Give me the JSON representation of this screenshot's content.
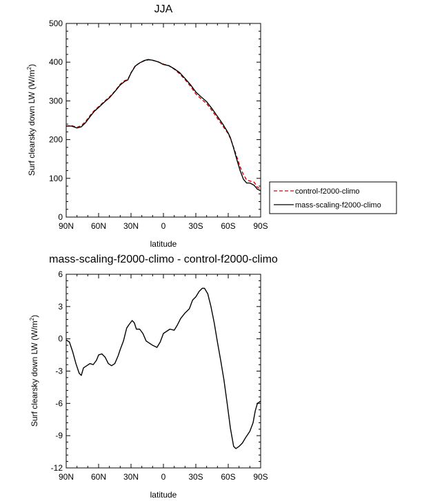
{
  "chart_data": [
    {
      "type": "line",
      "title": "JJA",
      "xlabel": "latitude",
      "ylabel_main": "Surf clearsky down LW (W/m",
      "ylabel_sup": "2",
      "ylabel_close": ")",
      "xlim": [
        90,
        -90
      ],
      "ylim": [
        0,
        500
      ],
      "grid": false,
      "legend_position": "right",
      "x_ticks": [
        {
          "value": 90,
          "label": "90N"
        },
        {
          "value": 60,
          "label": "60N"
        },
        {
          "value": 30,
          "label": "30N"
        },
        {
          "value": 0,
          "label": "0"
        },
        {
          "value": -30,
          "label": "30S"
        },
        {
          "value": -60,
          "label": "60S"
        },
        {
          "value": -90,
          "label": "90S"
        }
      ],
      "y_ticks": [
        {
          "value": 0,
          "label": "0"
        },
        {
          "value": 100,
          "label": "100"
        },
        {
          "value": 200,
          "label": "200"
        },
        {
          "value": 300,
          "label": "300"
        },
        {
          "value": 400,
          "label": "400"
        },
        {
          "value": 500,
          "label": "500"
        }
      ],
      "series": [
        {
          "name": "control-f2000-climo",
          "color": "#cc0000",
          "dash": "dashed",
          "points": [
            [
              90,
              235
            ],
            [
              85,
              236
            ],
            [
              80,
              232
            ],
            [
              76,
              236
            ],
            [
              72,
              247
            ],
            [
              68,
              262
            ],
            [
              64,
              275
            ],
            [
              60,
              285
            ],
            [
              55,
              298
            ],
            [
              50,
              310
            ],
            [
              45,
              325
            ],
            [
              40,
              343
            ],
            [
              36,
              352
            ],
            [
              33,
              355
            ],
            [
              30,
              373
            ],
            [
              26,
              391
            ],
            [
              22,
              398
            ],
            [
              18,
              403
            ],
            [
              14,
              406
            ],
            [
              10,
              405
            ],
            [
              5,
              401
            ],
            [
              0,
              395
            ],
            [
              -5,
              391
            ],
            [
              -10,
              382
            ],
            [
              -15,
              370
            ],
            [
              -20,
              355
            ],
            [
              -25,
              338
            ],
            [
              -30,
              318
            ],
            [
              -35,
              305
            ],
            [
              -40,
              293
            ],
            [
              -45,
              275
            ],
            [
              -50,
              255
            ],
            [
              -55,
              235
            ],
            [
              -60,
              215
            ],
            [
              -62,
              203
            ],
            [
              -65,
              180
            ],
            [
              -68,
              155
            ],
            [
              -71,
              130
            ],
            [
              -74,
              110
            ],
            [
              -77,
              96
            ],
            [
              -80,
              93
            ],
            [
              -84,
              90
            ],
            [
              -87,
              77
            ],
            [
              -90,
              73
            ]
          ]
        },
        {
          "name": "mass-scaling-f2000-climo",
          "color": "#000000",
          "dash": "solid",
          "points": [
            [
              90,
              235
            ],
            [
              85,
              235
            ],
            [
              80,
              230
            ],
            [
              76,
              233
            ],
            [
              72,
              244
            ],
            [
              68,
              259
            ],
            [
              64,
              273
            ],
            [
              60,
              283
            ],
            [
              55,
              296
            ],
            [
              50,
              308
            ],
            [
              45,
              324
            ],
            [
              40,
              341
            ],
            [
              36,
              350
            ],
            [
              33,
              354
            ],
            [
              30,
              372
            ],
            [
              26,
              390
            ],
            [
              22,
              398
            ],
            [
              18,
              404
            ],
            [
              14,
              407
            ],
            [
              10,
              405
            ],
            [
              5,
              401
            ],
            [
              0,
              394
            ],
            [
              -5,
              391
            ],
            [
              -10,
              383
            ],
            [
              -15,
              373
            ],
            [
              -20,
              358
            ],
            [
              -25,
              342
            ],
            [
              -30,
              323
            ],
            [
              -35,
              310
            ],
            [
              -40,
              298
            ],
            [
              -45,
              280
            ],
            [
              -50,
              260
            ],
            [
              -55,
              240
            ],
            [
              -60,
              217
            ],
            [
              -62,
              205
            ],
            [
              -65,
              178
            ],
            [
              -68,
              148
            ],
            [
              -71,
              120
            ],
            [
              -74,
              98
            ],
            [
              -77,
              88
            ],
            [
              -80,
              88
            ],
            [
              -84,
              82
            ],
            [
              -87,
              72
            ],
            [
              -90,
              68
            ]
          ]
        }
      ]
    },
    {
      "type": "line",
      "title": "mass-scaling-f2000-climo - control-f2000-climo",
      "xlabel": "latitude",
      "ylabel_main": "Surf clearsky down LW (W/m",
      "ylabel_sup": "2",
      "ylabel_close": ")",
      "xlim": [
        90,
        -90
      ],
      "ylim": [
        -12,
        6
      ],
      "grid": false,
      "x_ticks": [
        {
          "value": 90,
          "label": "90N"
        },
        {
          "value": 60,
          "label": "60N"
        },
        {
          "value": 30,
          "label": "30N"
        },
        {
          "value": 0,
          "label": "0"
        },
        {
          "value": -30,
          "label": "30S"
        },
        {
          "value": -60,
          "label": "60S"
        },
        {
          "value": -90,
          "label": "90S"
        }
      ],
      "y_ticks": [
        {
          "value": -12,
          "label": "-12"
        },
        {
          "value": -9,
          "label": "-9"
        },
        {
          "value": -6,
          "label": "-6"
        },
        {
          "value": -3,
          "label": "-3"
        },
        {
          "value": 0,
          "label": "0"
        },
        {
          "value": 3,
          "label": "3"
        },
        {
          "value": 6,
          "label": "6"
        }
      ],
      "series": [
        {
          "color": "#000000",
          "dash": "solid",
          "points": [
            [
              90,
              -0.1
            ],
            [
              87,
              -0.3
            ],
            [
              84,
              -1.2
            ],
            [
              81,
              -2.3
            ],
            [
              78,
              -3.2
            ],
            [
              76,
              -3.4
            ],
            [
              74,
              -2.7
            ],
            [
              71,
              -2.5
            ],
            [
              68,
              -2.3
            ],
            [
              65,
              -2.4
            ],
            [
              62,
              -2.0
            ],
            [
              60,
              -1.5
            ],
            [
              57,
              -1.4
            ],
            [
              54,
              -1.7
            ],
            [
              51,
              -2.3
            ],
            [
              48,
              -2.5
            ],
            [
              45,
              -2.3
            ],
            [
              42,
              -1.6
            ],
            [
              40,
              -1.0
            ],
            [
              37,
              -0.2
            ],
            [
              34,
              1.0
            ],
            [
              32,
              1.3
            ],
            [
              29,
              1.7
            ],
            [
              27,
              1.5
            ],
            [
              25,
              0.9
            ],
            [
              22,
              0.9
            ],
            [
              19,
              0.5
            ],
            [
              16,
              -0.2
            ],
            [
              13,
              -0.4
            ],
            [
              10,
              -0.6
            ],
            [
              6,
              -0.8
            ],
            [
              3,
              -0.3
            ],
            [
              0,
              0.5
            ],
            [
              -3,
              0.7
            ],
            [
              -6,
              0.9
            ],
            [
              -10,
              0.8
            ],
            [
              -13,
              1.3
            ],
            [
              -16,
              1.9
            ],
            [
              -20,
              2.4
            ],
            [
              -24,
              2.8
            ],
            [
              -27,
              3.6
            ],
            [
              -30,
              3.9
            ],
            [
              -33,
              4.4
            ],
            [
              -36,
              4.7
            ],
            [
              -38,
              4.7
            ],
            [
              -41,
              4.2
            ],
            [
              -44,
              3.0
            ],
            [
              -47,
              1.5
            ],
            [
              -50,
              -0.3
            ],
            [
              -53,
              -2.0
            ],
            [
              -56,
              -3.8
            ],
            [
              -59,
              -6.0
            ],
            [
              -62,
              -8.3
            ],
            [
              -65,
              -10.0
            ],
            [
              -67,
              -10.2
            ],
            [
              -70,
              -10.0
            ],
            [
              -73,
              -9.7
            ],
            [
              -76,
              -9.2
            ],
            [
              -80,
              -8.6
            ],
            [
              -83,
              -7.8
            ],
            [
              -85,
              -6.7
            ],
            [
              -87,
              -6.0
            ],
            [
              -90,
              -5.8
            ]
          ]
        }
      ]
    }
  ]
}
